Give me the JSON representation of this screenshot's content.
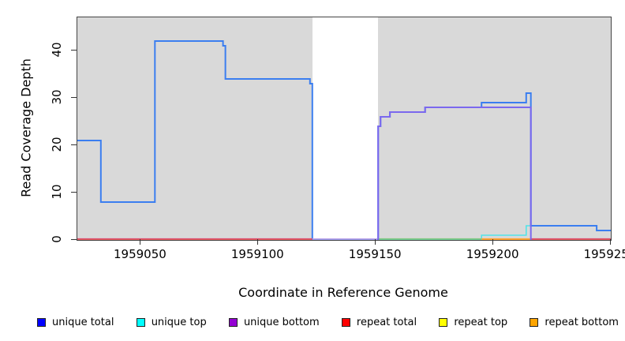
{
  "chart_data": {
    "type": "line",
    "subtype": "step-coverage-plot",
    "title": "",
    "xlabel": "Coordinate in Reference Genome",
    "ylabel": "Read Coverage Depth",
    "xlim": [
      1959023,
      1959250
    ],
    "ylim": [
      0,
      47
    ],
    "x_ticks": [
      1959050,
      1959100,
      1959150,
      1959200,
      1959250
    ],
    "y_ticks": [
      0,
      10,
      20,
      30,
      40
    ],
    "grid": "off",
    "legend_position": "bottom-row",
    "plot_background": "#d9d9d9",
    "no_data_gap": {
      "x_from": 1959123,
      "x_to": 1959151,
      "color": "#ffffff"
    },
    "series": [
      {
        "name": "repeat total",
        "legend_color": "#ff0000",
        "line_color": "#dd4a6e",
        "steps": [
          [
            1959023,
            0
          ],
          [
            1959250,
            0
          ]
        ]
      },
      {
        "name": "repeat top",
        "legend_color": "#ffff00",
        "line_color": "#ffff00",
        "steps": [
          [
            1959023,
            0
          ],
          [
            1959250,
            0
          ]
        ]
      },
      {
        "name": "repeat bottom",
        "legend_color": "#ffa500",
        "line_color": "#ffa330",
        "steps": [
          [
            1959023,
            0
          ],
          [
            1959250,
            0
          ]
        ]
      },
      {
        "name": "unique top",
        "legend_color": "#00ffff",
        "line_color": "#53e3e8",
        "steps": [
          [
            1959151,
            0
          ],
          [
            1959195,
            1
          ],
          [
            1959214,
            3
          ],
          [
            1959244,
            2
          ],
          [
            1959250,
            2
          ]
        ]
      },
      {
        "name": "unique total",
        "legend_color": "#0000ff",
        "line_color": "#3b7ef0",
        "steps": [
          [
            1959023,
            21
          ],
          [
            1959033,
            8
          ],
          [
            1959056,
            42
          ],
          [
            1959085,
            41
          ],
          [
            1959086,
            34
          ],
          [
            1959122,
            33
          ],
          [
            1959123,
            0
          ],
          [
            1959151,
            24
          ],
          [
            1959152,
            26
          ],
          [
            1959156,
            27
          ],
          [
            1959171,
            28
          ],
          [
            1959195,
            29
          ],
          [
            1959214,
            31
          ],
          [
            1959216,
            3
          ],
          [
            1959244,
            2
          ],
          [
            1959250,
            2
          ]
        ]
      },
      {
        "name": "unique bottom",
        "legend_color": "#9400d3",
        "line_color": "#7b68ee",
        "steps": [
          [
            1959151,
            0
          ],
          [
            1959151,
            24
          ],
          [
            1959152,
            26
          ],
          [
            1959156,
            27
          ],
          [
            1959171,
            28
          ],
          [
            1959216,
            28
          ],
          [
            1959216,
            0
          ]
        ]
      }
    ],
    "baseline_segments": [
      {
        "from": 1959023,
        "to": 1959123,
        "color": "#dd4a6e"
      },
      {
        "from": 1959123,
        "to": 1959151,
        "color": "#bca6ea"
      },
      {
        "from": 1959151,
        "to": 1959195,
        "color": "#7fc87f"
      },
      {
        "from": 1959195,
        "to": 1959216,
        "color": "#ffa330"
      },
      {
        "from": 1959216,
        "to": 1959250,
        "color": "#dd4a6e"
      }
    ],
    "legend": [
      {
        "label": "unique total",
        "color": "#0000ff"
      },
      {
        "label": "unique top",
        "color": "#00ffff"
      },
      {
        "label": "unique bottom",
        "color": "#9400d3"
      },
      {
        "label": "repeat total",
        "color": "#ff0000"
      },
      {
        "label": "repeat top",
        "color": "#ffff00"
      },
      {
        "label": "repeat bottom",
        "color": "#ffa500"
      }
    ]
  },
  "labels": {
    "x_axis_title": "Coordinate in Reference Genome",
    "y_axis_title": "Read Coverage Depth"
  }
}
